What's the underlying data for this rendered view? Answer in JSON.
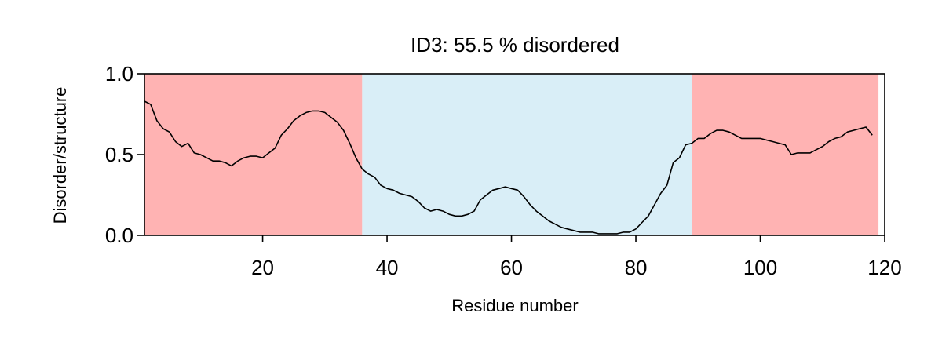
{
  "chart_data": {
    "type": "line",
    "title": "ID3: 55.5 % disordered",
    "xlabel": "Residue number",
    "ylabel": "Disorder/structure",
    "xlim": [
      1,
      120
    ],
    "ylim": [
      0,
      1
    ],
    "x_ticks": [
      20,
      40,
      60,
      80,
      100,
      120
    ],
    "y_ticks": [
      "0.0",
      "0.5",
      "1.0"
    ],
    "grid": false,
    "line_color": "#000000",
    "regions": [
      {
        "start": 1,
        "end": 36,
        "color": "#ffb3b3"
      },
      {
        "start": 36,
        "end": 89,
        "color": "#d9eef7"
      },
      {
        "start": 89,
        "end": 119,
        "color": "#ffb3b3"
      }
    ],
    "series": [
      {
        "x": [
          1,
          2,
          3,
          4,
          5,
          6,
          7,
          8,
          9,
          10,
          11,
          12,
          13,
          14,
          15,
          16,
          17,
          18,
          19,
          20,
          21,
          22,
          23,
          24,
          25,
          26,
          27,
          28,
          29,
          30,
          31,
          32,
          33,
          34,
          35,
          36,
          37,
          38,
          39,
          40,
          41,
          42,
          43,
          44,
          45,
          46,
          47,
          48,
          49,
          50,
          51,
          52,
          53,
          54,
          55,
          56,
          57,
          58,
          59,
          60,
          61,
          62,
          63,
          64,
          65,
          66,
          67,
          68,
          69,
          70,
          71,
          72,
          73,
          74,
          75,
          76,
          77,
          78,
          79,
          80,
          81,
          82,
          83,
          84,
          85,
          86,
          87,
          88,
          89,
          90,
          91,
          92,
          93,
          94,
          95,
          96,
          97,
          98,
          99,
          100,
          101,
          102,
          103,
          104,
          105,
          106,
          107,
          108,
          109,
          110,
          111,
          112,
          113,
          114,
          115,
          116,
          117,
          118
        ],
        "values": [
          0.83,
          0.81,
          0.71,
          0.66,
          0.64,
          0.58,
          0.55,
          0.57,
          0.51,
          0.5,
          0.48,
          0.46,
          0.46,
          0.45,
          0.43,
          0.46,
          0.48,
          0.49,
          0.49,
          0.48,
          0.51,
          0.54,
          0.62,
          0.66,
          0.71,
          0.74,
          0.76,
          0.77,
          0.77,
          0.76,
          0.73,
          0.7,
          0.65,
          0.57,
          0.48,
          0.41,
          0.38,
          0.36,
          0.31,
          0.29,
          0.28,
          0.26,
          0.25,
          0.24,
          0.21,
          0.17,
          0.15,
          0.16,
          0.15,
          0.13,
          0.12,
          0.12,
          0.13,
          0.15,
          0.22,
          0.25,
          0.28,
          0.29,
          0.3,
          0.29,
          0.28,
          0.24,
          0.19,
          0.15,
          0.12,
          0.09,
          0.07,
          0.05,
          0.04,
          0.03,
          0.02,
          0.02,
          0.02,
          0.01,
          0.01,
          0.01,
          0.01,
          0.02,
          0.02,
          0.04,
          0.08,
          0.12,
          0.19,
          0.26,
          0.31,
          0.45,
          0.48,
          0.56,
          0.57,
          0.6,
          0.6,
          0.63,
          0.65,
          0.65,
          0.64,
          0.62,
          0.6,
          0.6,
          0.6,
          0.6,
          0.59,
          0.58,
          0.57,
          0.56,
          0.5,
          0.51,
          0.51,
          0.51,
          0.53,
          0.55,
          0.58,
          0.6,
          0.61,
          0.64,
          0.65,
          0.66,
          0.67,
          0.62
        ]
      }
    ]
  }
}
